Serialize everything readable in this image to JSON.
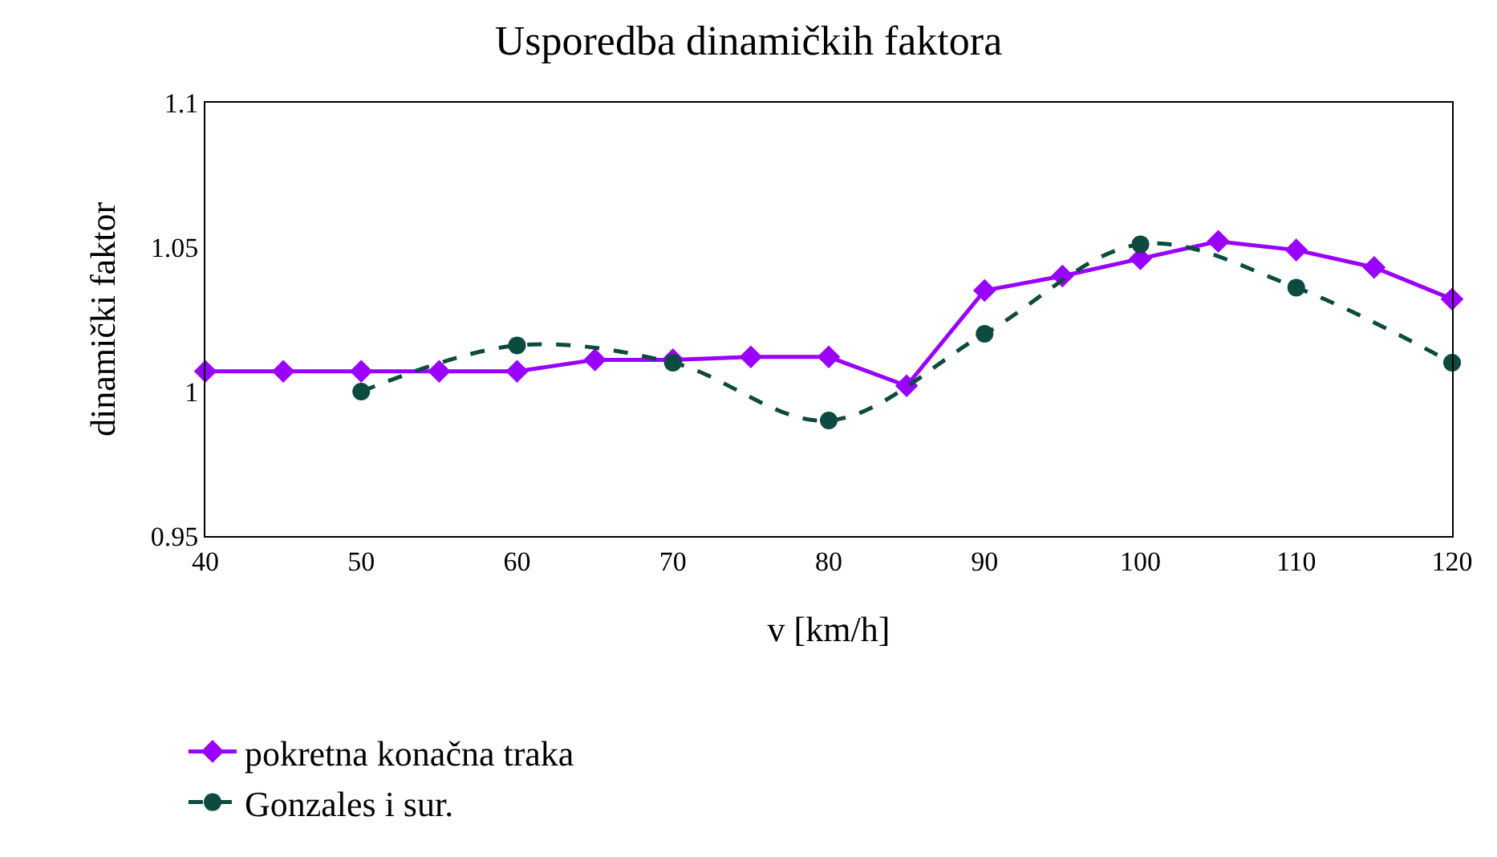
{
  "chart_data": {
    "type": "line",
    "title": "Usporedba dinamičkih faktora",
    "xlabel": "v [km/h]",
    "ylabel": "dinamički faktor",
    "xlim": [
      40,
      120
    ],
    "xticks": [
      40,
      50,
      60,
      70,
      80,
      90,
      100,
      110,
      120
    ],
    "ylim": [
      0.95,
      1.1
    ],
    "yticks": [
      0.95,
      1,
      1.05,
      1.1
    ],
    "legend": "bottom left",
    "series": [
      {
        "name": "pokretna konačna traka",
        "color": "#9900ff",
        "marker": "diamond",
        "line_style": "solid",
        "x": [
          40,
          45,
          50,
          55,
          60,
          65,
          70,
          75,
          80,
          85,
          90,
          95,
          100,
          105,
          110,
          115,
          120
        ],
        "values": [
          1.007,
          1.007,
          1.007,
          1.007,
          1.007,
          1.011,
          1.011,
          1.012,
          1.012,
          1.002,
          1.035,
          1.04,
          1.046,
          1.052,
          1.049,
          1.043,
          1.032
        ]
      },
      {
        "name": "Gonzales i sur.",
        "color": "#0d4a40",
        "marker": "circle",
        "line_style": "dashed",
        "x": [
          50,
          60,
          70,
          80,
          90,
          100,
          110,
          120
        ],
        "values": [
          1.0,
          1.016,
          1.01,
          0.99,
          1.02,
          1.051,
          1.036,
          1.01
        ]
      }
    ]
  }
}
